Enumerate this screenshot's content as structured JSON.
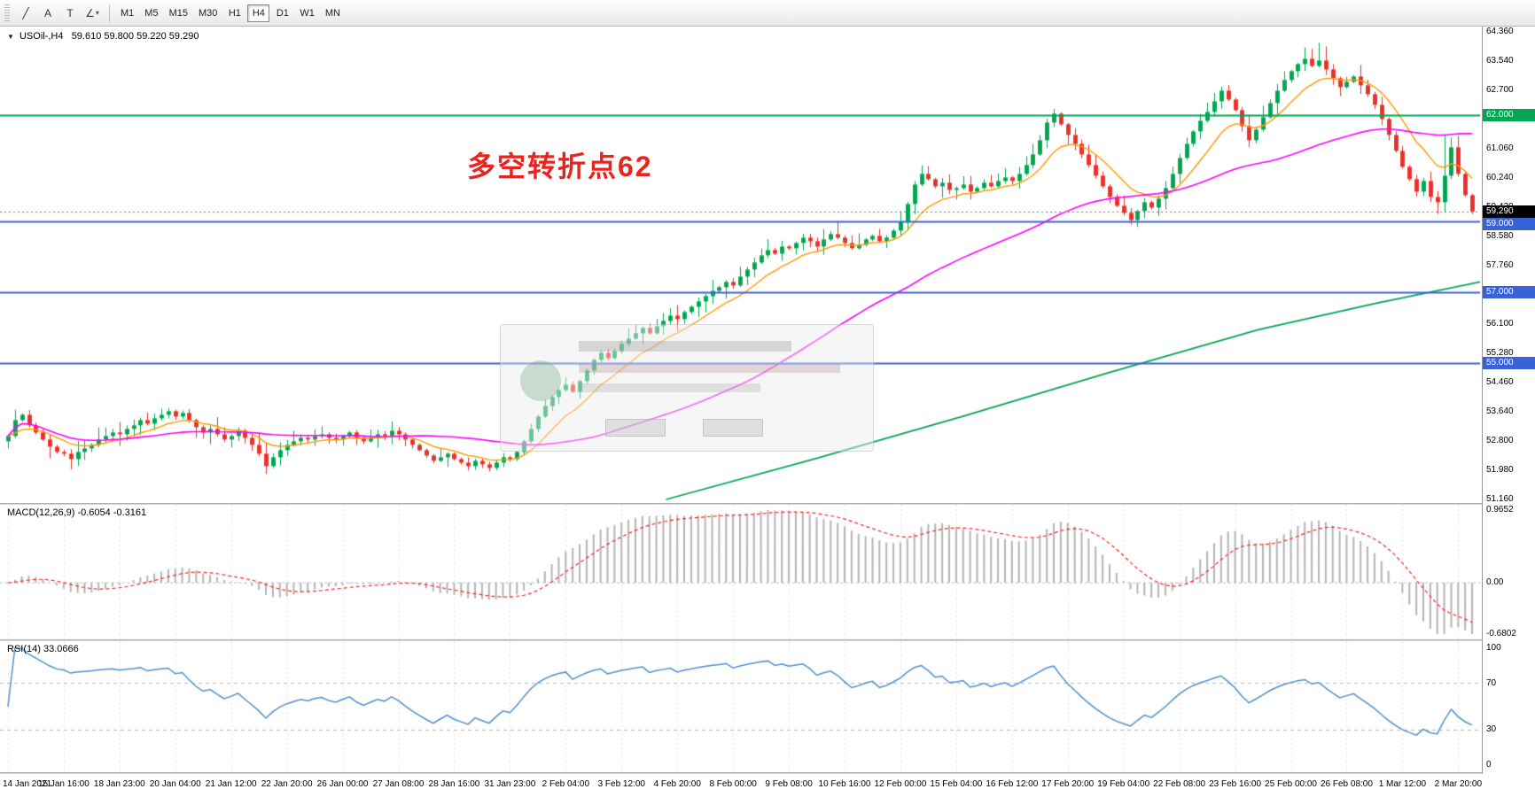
{
  "toolbar": {
    "tools": [
      {
        "name": "trendline-tool",
        "glyph": "╱"
      },
      {
        "name": "text-tool",
        "glyph": "A"
      },
      {
        "name": "text-label-tool",
        "glyph": "T"
      },
      {
        "name": "line-studies-tool",
        "glyph": "∠",
        "caret": "▾"
      }
    ],
    "timeframes": [
      "M1",
      "M5",
      "M15",
      "M30",
      "H1",
      "H4",
      "D1",
      "W1",
      "MN"
    ],
    "active_timeframe": "H4"
  },
  "main_chart": {
    "symbol_label": "USOil-,H4",
    "ohlc_label": "59.610 59.800 59.220 59.290",
    "annotation": {
      "text": "多空转折点62",
      "color": "#e8241f"
    },
    "price_ticks": [
      "64.360",
      "63.540",
      "62.700",
      "61.880",
      "61.060",
      "60.240",
      "59.420",
      "58.580",
      "57.760",
      "56.940",
      "56.100",
      "55.280",
      "54.460",
      "53.640",
      "52.800",
      "51.980",
      "51.160"
    ],
    "price_range": {
      "min": 51.16,
      "max": 64.36
    },
    "hlines": [
      {
        "price": 62.0,
        "label": "62.000",
        "color": "#00a651"
      },
      {
        "price": 59.0,
        "label": "59.000",
        "color": "#3a62d8"
      },
      {
        "price": 57.0,
        "label": "57.000",
        "color": "#3a62d8"
      },
      {
        "price": 55.0,
        "label": "55.000",
        "color": "#3a62d8"
      }
    ],
    "current_price": {
      "label": "59.290",
      "price": 59.29,
      "badge_bg": "#000000"
    }
  },
  "macd_panel": {
    "label": "MACD(12,26,9) -0.6054 -0.3161",
    "ticks": [
      "0.9652",
      "0.00",
      "-0.6802"
    ],
    "range": {
      "min": -0.6802,
      "max": 0.9652
    }
  },
  "rsi_panel": {
    "label": "RSI(14) 33.0666",
    "ticks": [
      "100",
      "70",
      "30",
      "0"
    ],
    "levels": [
      70,
      30
    ],
    "range": {
      "min": 0,
      "max": 100
    }
  },
  "time_axis": [
    "14 Jan 2021",
    "15 Jan 16:00",
    "18 Jan 23:00",
    "20 Jan 04:00",
    "21 Jan 12:00",
    "22 Jan 20:00",
    "26 Jan 00:00",
    "27 Jan 08:00",
    "28 Jan 16:00",
    "31 Jan 23:00",
    "2 Feb 04:00",
    "3 Feb 12:00",
    "4 Feb 20:00",
    "8 Feb 00:00",
    "9 Feb 08:00",
    "10 Feb 16:00",
    "12 Feb 00:00",
    "15 Feb 04:00",
    "16 Feb 12:00",
    "17 Feb 20:00",
    "19 Feb 04:00",
    "22 Feb 08:00",
    "23 Feb 16:00",
    "25 Feb 00:00",
    "26 Feb 08:00",
    "1 Mar 12:00",
    "2 Mar 20:00"
  ],
  "chart_data": {
    "type": "candlestick",
    "symbol": "USOil-",
    "timeframe": "H4",
    "last_ohlc": {
      "open": 59.61,
      "high": 59.8,
      "low": 59.22,
      "close": 59.29
    },
    "label_every": 8,
    "first_open": 52.8,
    "closes": [
      52.95,
      53.4,
      53.55,
      53.25,
      53.05,
      52.85,
      52.65,
      52.5,
      52.45,
      52.3,
      52.5,
      52.6,
      52.7,
      52.85,
      52.95,
      53.05,
      53.0,
      53.15,
      53.25,
      53.4,
      53.3,
      53.45,
      53.55,
      53.65,
      53.5,
      53.6,
      53.4,
      53.2,
      53.05,
      53.15,
      53.0,
      52.85,
      52.95,
      53.1,
      52.9,
      52.7,
      52.45,
      52.1,
      52.35,
      52.55,
      52.7,
      52.8,
      52.9,
      52.85,
      52.95,
      53.0,
      52.9,
      52.85,
      52.95,
      53.05,
      52.9,
      52.8,
      52.9,
      53.0,
      52.95,
      53.1,
      53.0,
      52.85,
      52.7,
      52.55,
      52.4,
      52.25,
      52.35,
      52.45,
      52.3,
      52.2,
      52.1,
      52.25,
      52.15,
      52.05,
      52.2,
      52.35,
      52.3,
      52.5,
      52.8,
      53.15,
      53.5,
      53.8,
      54.05,
      54.25,
      54.4,
      54.2,
      54.5,
      54.8,
      55.1,
      55.3,
      55.15,
      55.35,
      55.55,
      55.7,
      55.85,
      56.0,
      55.85,
      56.05,
      56.2,
      56.35,
      56.25,
      56.45,
      56.6,
      56.75,
      56.9,
      57.05,
      57.15,
      57.3,
      57.2,
      57.45,
      57.65,
      57.85,
      58.05,
      58.2,
      58.1,
      58.3,
      58.25,
      58.4,
      58.55,
      58.45,
      58.3,
      58.5,
      58.65,
      58.55,
      58.4,
      58.25,
      58.35,
      58.5,
      58.6,
      58.45,
      58.55,
      58.75,
      59.0,
      59.5,
      60.05,
      60.35,
      60.2,
      60.0,
      60.1,
      59.9,
      59.95,
      60.05,
      59.85,
      59.95,
      60.1,
      60.0,
      60.15,
      60.25,
      60.15,
      60.35,
      60.6,
      60.9,
      61.3,
      61.8,
      62.05,
      61.75,
      61.45,
      61.2,
      60.9,
      60.6,
      60.3,
      60.0,
      59.7,
      59.45,
      59.25,
      59.05,
      59.3,
      59.55,
      59.4,
      59.65,
      59.95,
      60.35,
      60.8,
      61.2,
      61.55,
      61.85,
      62.1,
      62.4,
      62.7,
      62.45,
      62.15,
      61.7,
      61.3,
      61.6,
      61.95,
      62.35,
      62.7,
      63.0,
      63.25,
      63.45,
      63.6,
      63.4,
      63.55,
      63.3,
      63.05,
      62.8,
      62.95,
      63.1,
      62.85,
      62.6,
      62.3,
      61.9,
      61.45,
      61.0,
      60.55,
      60.2,
      59.85,
      60.15,
      59.7,
      59.55,
      60.3,
      61.1,
      60.35,
      59.75,
      59.29
    ],
    "high_overrides": {
      "150": 62.18,
      "186": 63.92,
      "187": 63.88,
      "188": 64.05,
      "189": 63.95,
      "206": 61.45,
      "210": 59.8
    },
    "low_overrides": {
      "0": 52.6,
      "37": 51.88,
      "66": 51.98,
      "69": 51.95,
      "161": 58.92,
      "210": 59.22
    },
    "ma_fast_period": 10,
    "ma_mid_period": 50,
    "ma_slow_points": [
      [
        0.45,
        51.16
      ],
      [
        0.55,
        52.3
      ],
      [
        0.65,
        53.5
      ],
      [
        0.75,
        54.75
      ],
      [
        0.85,
        55.95
      ],
      [
        0.93,
        56.7
      ],
      [
        1.0,
        57.3
      ]
    ],
    "macd_params": [
      12,
      26,
      9
    ],
    "rsi_period": 14,
    "colors": {
      "up": "#00a651",
      "down": "#e8302a",
      "ma_fast": "#ff9900",
      "ma_mid": "#ff00ff",
      "ma_slow": "#00a651",
      "macd_hist": "#b4b4b4",
      "macd_signal": "#ff2020",
      "rsi": "#4f8fce",
      "grid": "#e3e3e3",
      "level": "#b8b8b8",
      "current_price_line": "#777777"
    }
  }
}
